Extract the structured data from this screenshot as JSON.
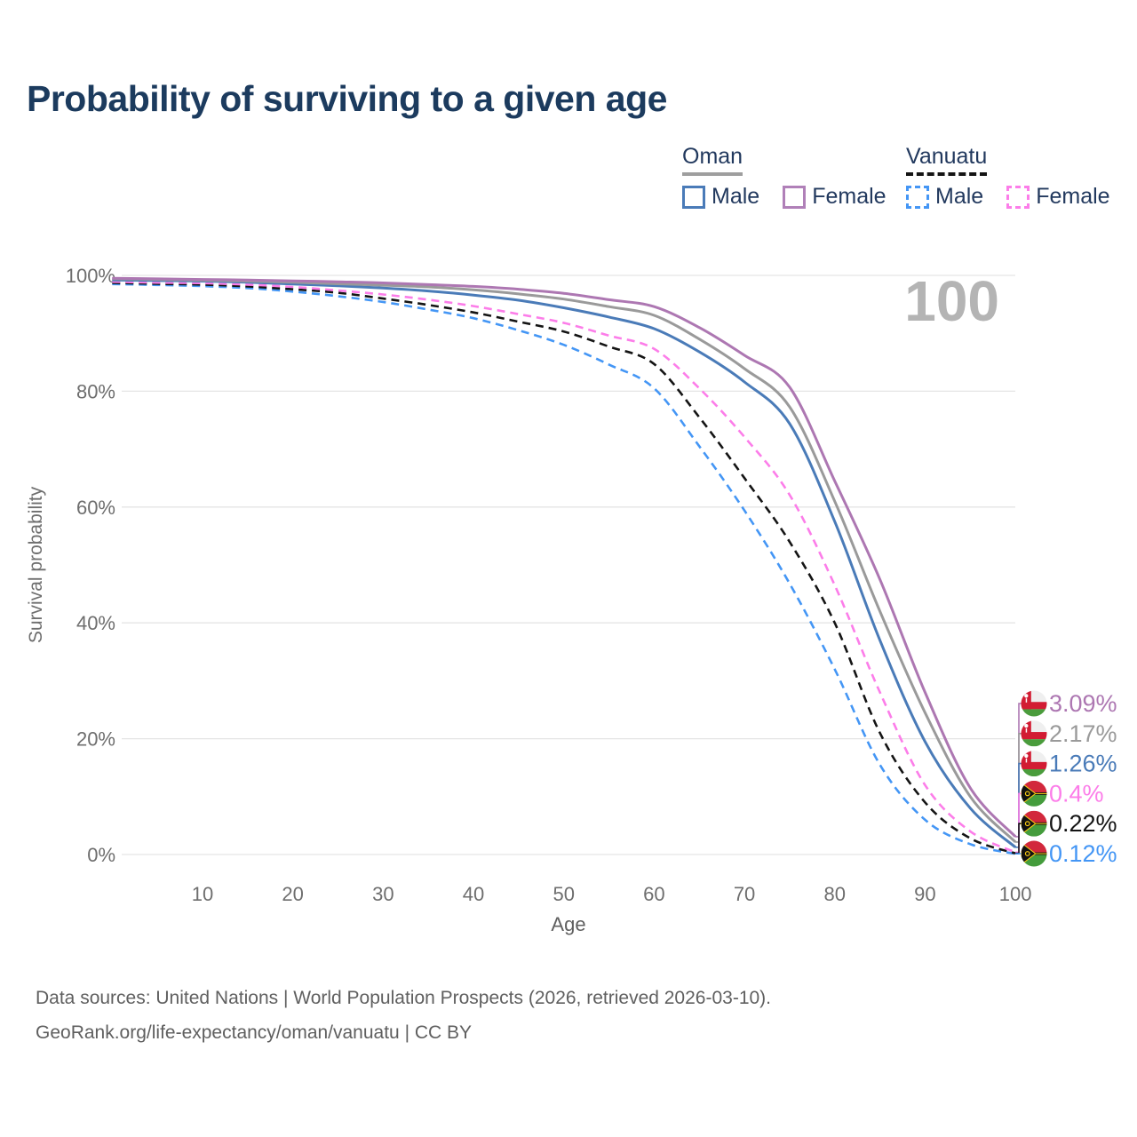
{
  "header": {
    "title": "Probability of surviving to a given age"
  },
  "legend": {
    "groups": [
      {
        "label": "Oman",
        "line_style": "solid",
        "line_color": "#9e9e9e",
        "items": [
          {
            "label": "Male",
            "color": "#4a7bb8",
            "dashed": false
          },
          {
            "label": "Female",
            "color": "#b080b8",
            "dashed": false
          }
        ]
      },
      {
        "label": "Vanuatu",
        "line_style": "dashed",
        "line_color": "#141414",
        "items": [
          {
            "label": "Male",
            "color": "#4496f5",
            "dashed": true
          },
          {
            "label": "Female",
            "color": "#fc7de9",
            "dashed": true
          }
        ]
      }
    ]
  },
  "chart_data": {
    "type": "line",
    "title": "Probability of surviving to a given age",
    "xlabel": "Age",
    "ylabel": "Survival probability",
    "xlim": [
      0,
      100
    ],
    "ylim": [
      0,
      100
    ],
    "x_ticks": [
      10,
      20,
      30,
      40,
      50,
      60,
      70,
      80,
      90,
      100
    ],
    "y_ticks": [
      0,
      20,
      40,
      60,
      80,
      100
    ],
    "y_tick_suffix": "%",
    "grid": true,
    "legend_position": "top-right",
    "watermark": "100",
    "ages": [
      0,
      5,
      10,
      15,
      20,
      25,
      30,
      35,
      40,
      45,
      50,
      55,
      60,
      65,
      70,
      75,
      80,
      85,
      90,
      95,
      100
    ],
    "series": [
      {
        "name": "Oman Female",
        "country": "Oman",
        "sex": "Female",
        "flag": "oman",
        "color": "#ad77b2",
        "dashed": false,
        "end_label": "3.09%",
        "values": [
          99.5,
          99.4,
          99.3,
          99.2,
          99.05,
          98.9,
          98.7,
          98.4,
          98.1,
          97.6,
          96.9,
          95.8,
          94.6,
          91.0,
          86.2,
          80.7,
          64.5,
          47.5,
          28.0,
          11.5,
          3.09
        ]
      },
      {
        "name": "Oman All",
        "country": "Oman",
        "sex": "All",
        "flag": "oman",
        "color": "#9a9a9a",
        "dashed": false,
        "end_label": "2.17%",
        "values": [
          99.4,
          99.3,
          99.15,
          99.0,
          98.8,
          98.55,
          98.3,
          98.0,
          97.5,
          96.8,
          95.9,
          94.6,
          93.1,
          89.0,
          83.9,
          77.3,
          61.0,
          42.0,
          24.5,
          10.0,
          2.17
        ]
      },
      {
        "name": "Oman Male",
        "country": "Oman",
        "sex": "Male",
        "flag": "oman",
        "color": "#4a7bb8",
        "dashed": false,
        "end_label": "1.26%",
        "values": [
          99.2,
          99.1,
          99.0,
          98.8,
          98.5,
          98.2,
          97.8,
          97.3,
          96.6,
          95.7,
          94.4,
          92.8,
          90.8,
          86.8,
          81.6,
          74.4,
          57.5,
          37.0,
          19.5,
          8.0,
          1.26
        ]
      },
      {
        "name": "Vanuatu Female",
        "country": "Vanuatu",
        "sex": "Female",
        "flag": "vanuatu",
        "color": "#fc7de9",
        "dashed": true,
        "end_label": "0.4%",
        "values": [
          98.9,
          98.75,
          98.65,
          98.4,
          98.0,
          97.4,
          96.7,
          95.8,
          94.7,
          93.3,
          91.8,
          89.6,
          87.3,
          80.5,
          72.1,
          62.1,
          46.5,
          28.0,
          12.0,
          4.0,
          0.4
        ]
      },
      {
        "name": "Vanuatu All",
        "country": "Vanuatu",
        "sex": "All",
        "flag": "vanuatu",
        "color": "#141414",
        "dashed": true,
        "end_label": "0.22%",
        "values": [
          98.7,
          98.55,
          98.4,
          98.1,
          97.6,
          97.0,
          96.0,
          94.9,
          93.6,
          92.0,
          90.3,
          87.7,
          84.7,
          75.5,
          65.0,
          54.0,
          40.0,
          21.0,
          9.0,
          2.8,
          0.22
        ]
      },
      {
        "name": "Vanuatu Male",
        "country": "Vanuatu",
        "sex": "Male",
        "flag": "vanuatu",
        "color": "#4496f5",
        "dashed": true,
        "end_label": "0.12%",
        "values": [
          98.5,
          98.35,
          98.15,
          97.8,
          97.2,
          96.4,
          95.4,
          94.1,
          92.6,
          90.5,
          88.0,
          84.6,
          80.5,
          70.5,
          59.4,
          46.8,
          32.0,
          15.5,
          6.0,
          1.8,
          0.12
        ]
      }
    ]
  },
  "footer": {
    "line1": "Data sources: United Nations | World Population Prospects (2026, retrieved 2026-03-10).",
    "line2": "GeoRank.org/life-expectancy/oman/vanuatu | CC BY"
  }
}
